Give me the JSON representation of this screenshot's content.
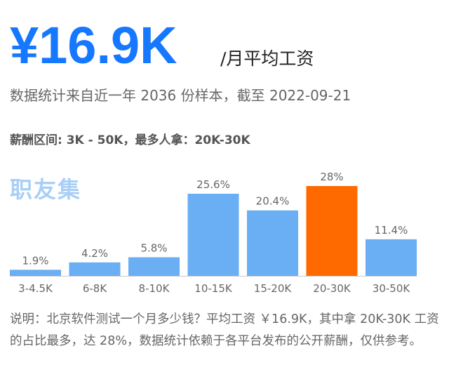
{
  "header": {
    "salary": "¥16.9K",
    "salary_unit": "/月平均工资",
    "subtitle": "数据统计来自近一年 2036 份样本，截至 2022-09-21",
    "range_label": "薪酬区间: 3K - 50K，最多人拿：20K-30K"
  },
  "watermark": "职友集",
  "chart_data": {
    "type": "bar",
    "categories": [
      "3-4.5K",
      "6-8K",
      "8-10K",
      "10-15K",
      "15-20K",
      "20-30K",
      "30-50K"
    ],
    "values": [
      1.9,
      4.2,
      5.8,
      25.6,
      20.4,
      28,
      11.4
    ],
    "value_labels": [
      "1.9%",
      "4.2%",
      "5.8%",
      "25.6%",
      "20.4%",
      "28%",
      "11.4%"
    ],
    "highlight_index": 5,
    "colors": {
      "bar": "#6aaef4",
      "highlight": "#ff6a00",
      "axis": "#cccccc"
    },
    "ylim": [
      0,
      28
    ]
  },
  "note": "说明：北京软件测试一个月多少钱？平均工资 ￥16.9K，其中拿 20K-30K 工资的占比最多，达 28%，数据统计依赖于各平台发布的公开薪酬，仅供参考。"
}
